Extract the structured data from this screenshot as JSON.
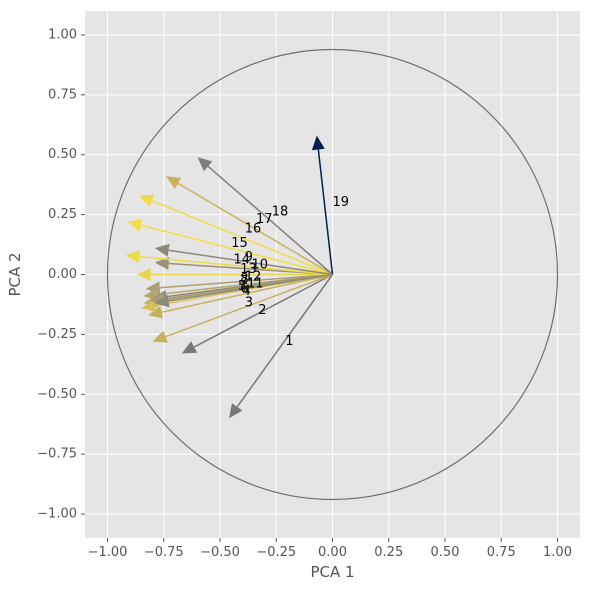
{
  "chart_data": {
    "type": "scatter",
    "subtype": "pca-biplot-loadings",
    "title": "",
    "xlabel": "PCA 1",
    "ylabel": "PCA 2",
    "xlim": [
      -1.1,
      1.1
    ],
    "ylim": [
      -1.1,
      1.1
    ],
    "xticks": [
      "−1.00",
      "−0.75",
      "−0.50",
      "−0.25",
      "0.00",
      "0.25",
      "0.50",
      "0.75",
      "1.00"
    ],
    "yticks": [
      "−1.00",
      "−0.75",
      "−0.50",
      "−0.25",
      "0.00",
      "0.25",
      "0.50",
      "0.75",
      "1.00"
    ],
    "xtick_values": [
      -1.0,
      -0.75,
      -0.5,
      -0.25,
      0.0,
      0.25,
      0.5,
      0.75,
      1.0
    ],
    "ytick_values": [
      -1.0,
      -0.75,
      -0.5,
      -0.25,
      0.0,
      0.25,
      0.5,
      0.75,
      1.0
    ],
    "grid": true,
    "style": "ggplot",
    "unit_circle": true,
    "vectors": [
      {
        "label": "1",
        "x": -0.46,
        "y": -0.6,
        "lx": -0.21,
        "ly": -0.28,
        "color": "#787878"
      },
      {
        "label": "2",
        "x": -0.67,
        "y": -0.33,
        "lx": -0.33,
        "ly": -0.15,
        "color": "#787878"
      },
      {
        "label": "3",
        "x": -0.8,
        "y": -0.28,
        "lx": -0.39,
        "ly": -0.12,
        "color": "#c8b15e"
      },
      {
        "label": "4",
        "x": -0.82,
        "y": -0.17,
        "lx": -0.4,
        "ly": -0.07,
        "color": "#c8b15e"
      },
      {
        "label": "5",
        "x": -0.84,
        "y": -0.12,
        "lx": -0.42,
        "ly": -0.05,
        "color": "#bfae6a"
      },
      {
        "label": "6",
        "x": -0.85,
        "y": -0.14,
        "lx": -0.41,
        "ly": -0.06,
        "color": "#d8c15a"
      },
      {
        "label": "7",
        "x": -0.83,
        "y": -0.06,
        "lx": -0.41,
        "ly": -0.03,
        "color": "#a89f74"
      },
      {
        "label": "8",
        "x": -0.84,
        "y": -0.09,
        "lx": -0.41,
        "ly": -0.02,
        "color": "#b3a66c"
      },
      {
        "label": "9",
        "x": -0.79,
        "y": 0.05,
        "lx": -0.39,
        "ly": 0.07,
        "color": "#9a9278"
      },
      {
        "label": "10",
        "x": -0.87,
        "y": 0.0,
        "lx": -0.36,
        "ly": 0.04,
        "color": "#e8d550"
      },
      {
        "label": "11",
        "x": -0.8,
        "y": -0.1,
        "lx": -0.38,
        "ly": -0.04,
        "color": "#8e8a78"
      },
      {
        "label": "12",
        "x": -0.81,
        "y": -0.11,
        "lx": -0.39,
        "ly": -0.01,
        "color": "#a49c72"
      },
      {
        "label": "13",
        "x": -0.79,
        "y": -0.12,
        "lx": -0.41,
        "ly": 0.02,
        "color": "#8e8a78"
      },
      {
        "label": "14",
        "x": -0.92,
        "y": 0.08,
        "lx": -0.44,
        "ly": 0.06,
        "color": "#f0dc48"
      },
      {
        "label": "15",
        "x": -0.91,
        "y": 0.22,
        "lx": -0.45,
        "ly": 0.13,
        "color": "#f2df45"
      },
      {
        "label": "16",
        "x": -0.86,
        "y": 0.33,
        "lx": -0.39,
        "ly": 0.19,
        "color": "#f0dc48"
      },
      {
        "label": "17",
        "x": -0.74,
        "y": 0.41,
        "lx": -0.34,
        "ly": 0.23,
        "color": "#c8b15e"
      },
      {
        "label": "18",
        "x": -0.6,
        "y": 0.49,
        "lx": -0.27,
        "ly": 0.26,
        "color": "#7f7f7f"
      },
      {
        "label": "19",
        "x": -0.07,
        "y": 0.58,
        "lx": 0.0,
        "ly": 0.3,
        "color": "#00204d"
      },
      {
        "label": "",
        "x": -0.79,
        "y": 0.11,
        "lx": null,
        "ly": null,
        "color": "#8e8a78"
      }
    ]
  },
  "colors": {
    "figure_bg": "#ffffff",
    "axes_bg": "#e5e5e5",
    "grid": "#ffffff",
    "circle": "#6f6f6f"
  }
}
